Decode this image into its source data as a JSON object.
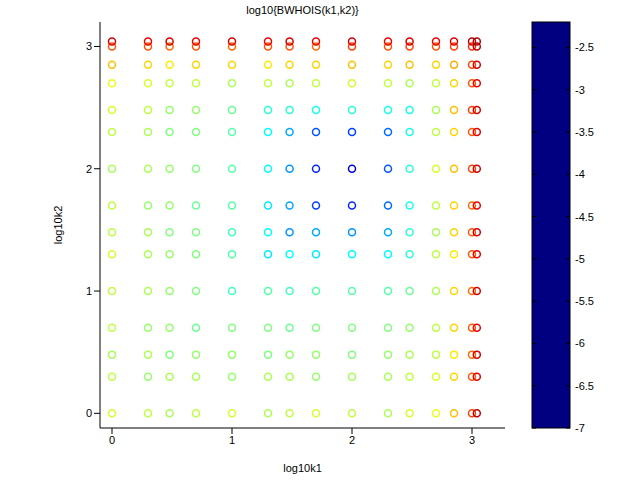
{
  "chart_data": {
    "type": "scatter",
    "title": "log10{BWHOIS(k1,k2)}",
    "x_label": "log10k1",
    "y_label": "log10k2",
    "xlim": [
      -0.1,
      3.275
    ],
    "ylim": [
      -0.12,
      3.2
    ],
    "xticks": [
      0,
      1,
      2,
      3
    ],
    "yticks": [
      0,
      1,
      2,
      3
    ],
    "marker": "o",
    "cells": {
      "x": [
        0,
        0.3,
        0.48,
        0.7,
        1,
        1.3,
        1.48,
        1.7,
        2,
        2.3,
        2.48,
        2.7,
        2.85,
        3,
        3.04
      ],
      "y": [
        0,
        0.3,
        0.48,
        0.7,
        1,
        1.3,
        1.48,
        1.7,
        2,
        2.3,
        2.48,
        2.7,
        2.85,
        3,
        3.04
      ],
      "values": [
        [
          -4.2,
          -4.3,
          -4.4,
          -4.3,
          -4.2,
          -4.4,
          -4.3,
          -4.2,
          -4.3,
          -4.4,
          -4.2,
          -4.1,
          -3.7,
          -3.1,
          -2.5
        ],
        [
          -4.3,
          -4.5,
          -4.4,
          -4.4,
          -4.5,
          -4.4,
          -4.4,
          -4.5,
          -4.4,
          -4.4,
          -4.3,
          -4.2,
          -3.8,
          -3.2,
          -2.7
        ],
        [
          -4.4,
          -4.4,
          -4.6,
          -4.5,
          -4.5,
          -4.6,
          -4.5,
          -4.5,
          -4.6,
          -4.5,
          -4.4,
          -4.3,
          -3.9,
          -3.3,
          -2.6
        ],
        [
          -4.3,
          -4.5,
          -4.5,
          -4.7,
          -4.6,
          -4.6,
          -4.7,
          -4.6,
          -4.6,
          -4.6,
          -4.5,
          -4.3,
          -3.8,
          -3.2,
          -2.7
        ],
        [
          -4.3,
          -4.4,
          -4.5,
          -4.6,
          -4.9,
          -4.8,
          -4.9,
          -4.8,
          -4.8,
          -4.8,
          -4.7,
          -4.4,
          -3.8,
          -3.3,
          -2.6
        ],
        [
          -4.2,
          -4.4,
          -4.5,
          -4.6,
          -4.8,
          -5.3,
          -5.2,
          -5.3,
          -5.2,
          -5.2,
          -5.0,
          -4.3,
          -3.9,
          -3.2,
          -2.7
        ],
        [
          -4.3,
          -4.4,
          -4.6,
          -4.6,
          -4.9,
          -5.2,
          -5.7,
          -5.6,
          -5.7,
          -5.6,
          -5.0,
          -4.4,
          -3.8,
          -3.2,
          -2.6
        ],
        [
          -4.3,
          -4.5,
          -4.5,
          -4.7,
          -4.8,
          -5.3,
          -5.6,
          -6.1,
          -6.2,
          -5.9,
          -5.1,
          -4.3,
          -3.8,
          -3.3,
          -2.7
        ],
        [
          -4.4,
          -4.4,
          -4.5,
          -4.6,
          -4.8,
          -5.2,
          -5.7,
          -6.2,
          -6.5,
          -6.0,
          -5.0,
          -4.2,
          -3.7,
          -3.1,
          -2.6
        ],
        [
          -4.3,
          -4.4,
          -4.6,
          -4.6,
          -4.8,
          -5.2,
          -5.6,
          -6.0,
          -6.1,
          -5.9,
          -5.1,
          -4.3,
          -3.8,
          -3.2,
          -2.7
        ],
        [
          -4.2,
          -4.3,
          -4.5,
          -4.5,
          -4.7,
          -5.0,
          -5.0,
          -5.1,
          -5.0,
          -5.1,
          -5.1,
          -4.4,
          -3.7,
          -3.1,
          -2.6
        ],
        [
          -4.1,
          -4.2,
          -4.3,
          -4.3,
          -4.4,
          -4.3,
          -4.4,
          -4.3,
          -4.2,
          -4.3,
          -4.4,
          -4.3,
          -3.8,
          -3.2,
          -2.7
        ],
        [
          -3.7,
          -3.8,
          -3.9,
          -3.8,
          -3.8,
          -3.9,
          -3.8,
          -3.8,
          -3.7,
          -3.8,
          -3.7,
          -3.8,
          -3.6,
          -3.1,
          -2.6
        ],
        [
          -3.2,
          -3.2,
          -3.3,
          -3.2,
          -3.3,
          -3.2,
          -3.2,
          -3.3,
          -3.1,
          -3.2,
          -3.1,
          -3.2,
          -3.1,
          -3.0,
          -2.5
        ],
        [
          -2.6,
          -2.7,
          -2.6,
          -2.7,
          -2.6,
          -2.7,
          -2.6,
          -2.7,
          -2.6,
          -2.7,
          -2.6,
          -2.7,
          -2.6,
          -2.5,
          -2.4
        ]
      ]
    },
    "colorbar": {
      "range": [
        -7,
        -2.2
      ],
      "ticks": [
        -2.5,
        -3,
        -3.5,
        -4,
        -4.5,
        -5,
        -5.5,
        -6,
        -6.5,
        -7
      ]
    }
  }
}
